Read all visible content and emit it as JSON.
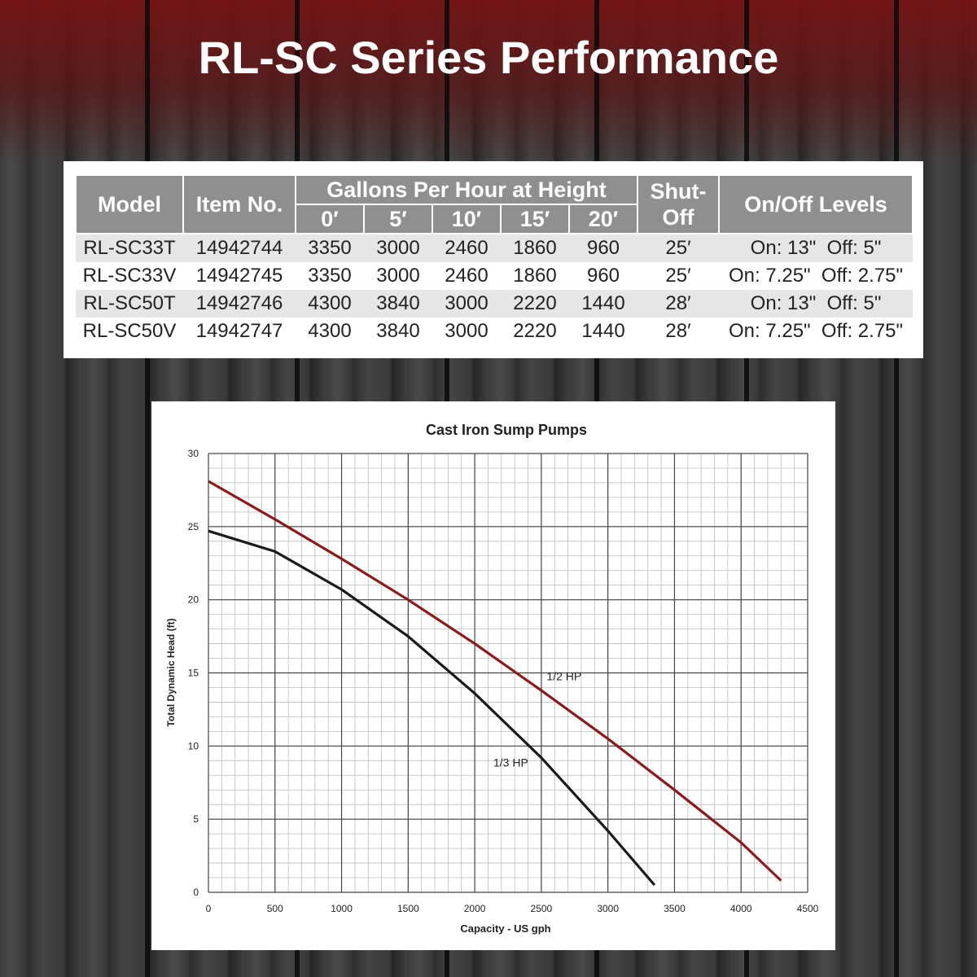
{
  "page": {
    "title": "RL-SC Series Performance"
  },
  "table": {
    "headers": {
      "model": "Model",
      "item_no": "Item No.",
      "gph_group": "Gallons Per Hour at Height",
      "shutoff": "Shut-Off",
      "levels": "On/Off Levels",
      "heights": [
        "0′",
        "5′",
        "10′",
        "15′",
        "20′"
      ]
    },
    "rows": [
      {
        "model": "RL-SC33T",
        "item": "14942744",
        "gph": [
          "3350",
          "3000",
          "2460",
          "1860",
          "960"
        ],
        "shutoff": "25′",
        "levels": "On: 13\"  Off: 5\""
      },
      {
        "model": "RL-SC33V",
        "item": "14942745",
        "gph": [
          "3350",
          "3000",
          "2460",
          "1860",
          "960"
        ],
        "shutoff": "25′",
        "levels": "On: 7.25\"  Off: 2.75\""
      },
      {
        "model": "RL-SC50T",
        "item": "14942746",
        "gph": [
          "4300",
          "3840",
          "3000",
          "2220",
          "1440"
        ],
        "shutoff": "28′",
        "levels": "On: 13\"  Off: 5\""
      },
      {
        "model": "RL-SC50V",
        "item": "14942747",
        "gph": [
          "4300",
          "3840",
          "3000",
          "2220",
          "1440"
        ],
        "shutoff": "28′",
        "levels": "On: 7.25\"  Off: 2.75\""
      }
    ]
  },
  "colors": {
    "half_hp": "#8b1a1a",
    "third_hp": "#1a1a1a",
    "header_bg": "#8f8f8f"
  },
  "chart_data": {
    "type": "line",
    "title": "Cast Iron Sump Pumps",
    "xlabel": "Capacity - US gph",
    "ylabel": "Total Dynamic Head (ft)",
    "xlim": [
      0,
      4500
    ],
    "ylim": [
      0,
      30
    ],
    "x_ticks": [
      0,
      500,
      1000,
      1500,
      2000,
      2500,
      3000,
      3500,
      4000,
      4500
    ],
    "y_ticks": [
      0,
      5,
      10,
      15,
      20,
      25,
      30
    ],
    "grid": true,
    "series": [
      {
        "name": "1/2 HP",
        "x": [
          0,
          500,
          1000,
          1500,
          2000,
          2500,
          3000,
          3500,
          4000,
          4300
        ],
        "y": [
          28.1,
          25.5,
          22.8,
          20.0,
          17.0,
          13.8,
          10.5,
          7.0,
          3.4,
          0.8
        ]
      },
      {
        "name": "1/3 HP",
        "x": [
          0,
          500,
          1000,
          1500,
          2000,
          2500,
          3000,
          3350
        ],
        "y": [
          24.7,
          23.3,
          20.7,
          17.5,
          13.6,
          9.2,
          4.2,
          0.5
        ]
      }
    ]
  }
}
